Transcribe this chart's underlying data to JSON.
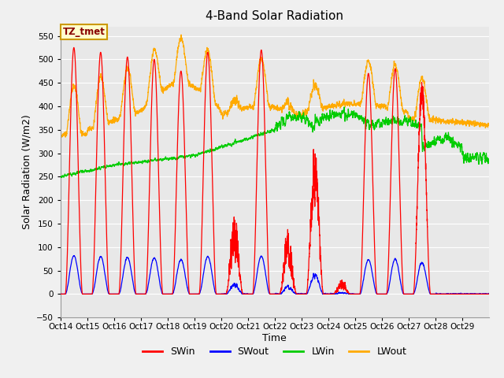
{
  "title": "4-Band Solar Radiation",
  "xlabel": "Time",
  "ylabel": "Solar Radiation (W/m2)",
  "ylim": [
    -50,
    570
  ],
  "yticks": [
    -50,
    0,
    50,
    100,
    150,
    200,
    250,
    300,
    350,
    400,
    450,
    500,
    550
  ],
  "fig_bg_color": "#f0f0f0",
  "plot_bg_color": "#e8e8e8",
  "legend_items": [
    "SWin",
    "SWout",
    "LWin",
    "LWout"
  ],
  "legend_colors": [
    "#ff0000",
    "#0000ff",
    "#00cc00",
    "#ffaa00"
  ],
  "annotation_text": "TZ_tmet",
  "annotation_bg": "#ffffcc",
  "annotation_border": "#cc9900",
  "annotation_text_color": "#880000",
  "x_tick_labels": [
    "Oct 14",
    "Oct 15",
    "Oct 16",
    "Oct 17",
    "Oct 18",
    "Oct 19",
    "Oct 20",
    "Oct 21",
    "Oct 22",
    "Oct 23",
    "Oct 24",
    "Oct 25",
    "Oct 26",
    "Oct 27",
    "Oct 28",
    "Oct 29"
  ],
  "line_width": 1.0,
  "days": 16
}
